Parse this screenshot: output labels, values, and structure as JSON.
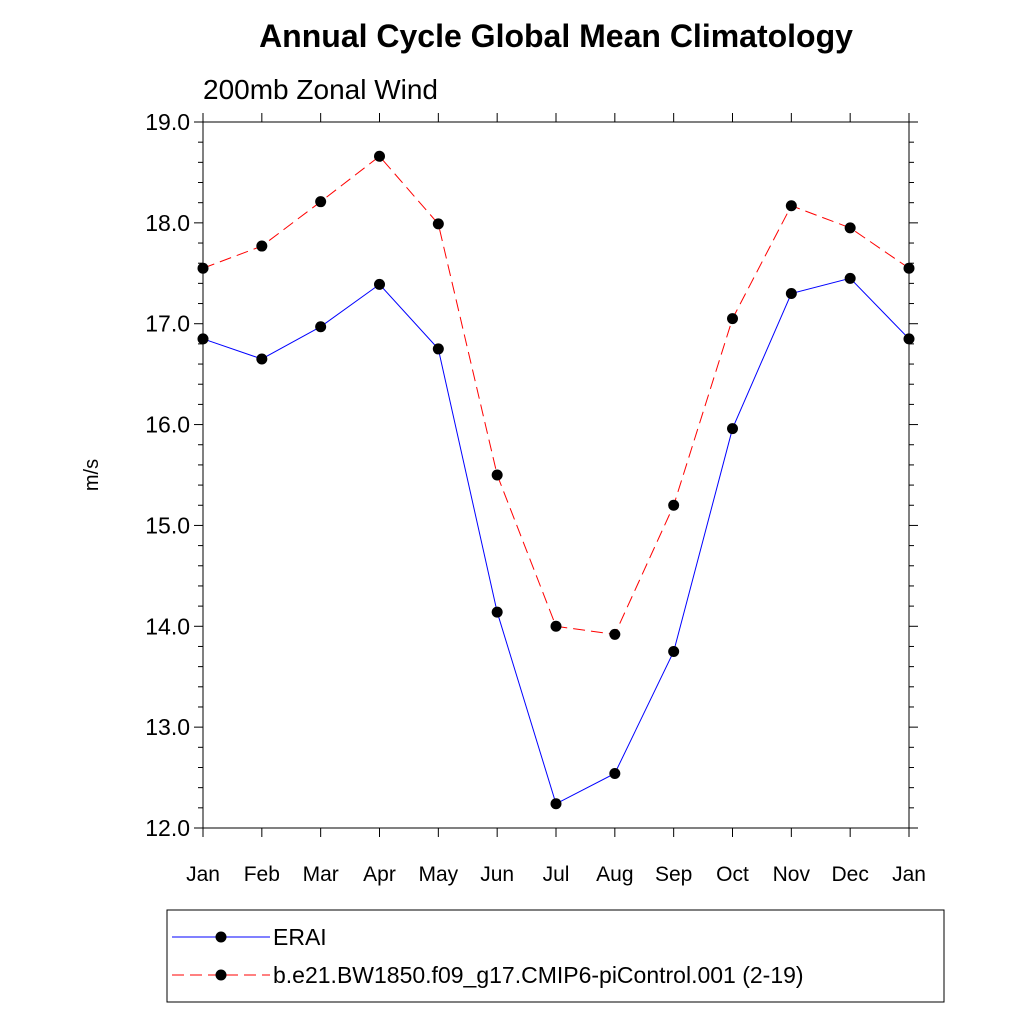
{
  "chart_data": {
    "type": "line",
    "title": "Annual Cycle Global Mean Climatology",
    "subtitle": "200mb Zonal Wind",
    "xlabel": "",
    "ylabel": "m/s",
    "ylim": [
      12.0,
      19.0
    ],
    "yticks": [
      "12.0",
      "13.0",
      "14.0",
      "15.0",
      "16.0",
      "17.0",
      "18.0",
      "19.0"
    ],
    "categories": [
      "Jan",
      "Feb",
      "Mar",
      "Apr",
      "May",
      "Jun",
      "Jul",
      "Aug",
      "Sep",
      "Oct",
      "Nov",
      "Dec",
      "Jan"
    ],
    "grid": false,
    "legend_position": "bottom",
    "series": [
      {
        "name": "ERAI",
        "color": "#0000ff",
        "line_style": "solid",
        "marker": "filled-circle",
        "values": [
          16.85,
          16.65,
          16.97,
          17.39,
          16.75,
          14.14,
          12.24,
          12.54,
          13.75,
          15.96,
          17.3,
          17.45,
          16.85
        ]
      },
      {
        "name": "b.e21.BW1850.f09_g17.CMIP6-piControl.001 (2-19)",
        "color": "#ff0000",
        "line_style": "dashed",
        "marker": "filled-circle",
        "values": [
          17.55,
          17.77,
          18.21,
          18.66,
          17.99,
          15.5,
          14.0,
          13.92,
          15.2,
          17.05,
          18.17,
          17.95,
          17.55
        ]
      }
    ]
  }
}
